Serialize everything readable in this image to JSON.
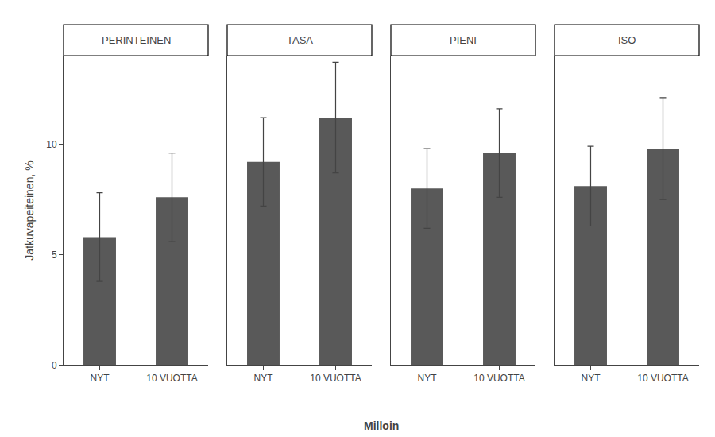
{
  "chart_data": [
    {
      "type": "bar",
      "title": "PERINTEINEN",
      "categories": [
        "NYT",
        "10 VUOTTA"
      ],
      "values": [
        5.8,
        7.6
      ],
      "errors": [
        2.0,
        2.0
      ],
      "color": "#595959",
      "ylabel": "Jatkuvapeiteinen, %",
      "xlabel": "Milloin",
      "ylim": [
        0,
        14
      ],
      "yticks": [
        0,
        5,
        10
      ],
      "grid": false
    },
    {
      "type": "bar",
      "title": "TASA",
      "categories": [
        "NYT",
        "10 VUOTTA"
      ],
      "values": [
        9.2,
        11.2
      ],
      "errors": [
        2.0,
        2.5
      ],
      "color": "#595959",
      "ylim": [
        0,
        14
      ],
      "yticks": [
        0,
        5,
        10
      ],
      "grid": false,
      "tick_labels": "x"
    },
    {
      "type": "bar",
      "title": "PIENI",
      "categories": [
        "NYT",
        "10 VUOTTA"
      ],
      "values": [
        8.0,
        9.6
      ],
      "errors": [
        1.8,
        2.0
      ],
      "color": "#595959",
      "ylim": [
        0,
        14
      ],
      "yticks": [
        0,
        5,
        10
      ],
      "grid": false,
      "tick_labels": "x"
    },
    {
      "type": "bar",
      "title": "ISO",
      "categories": [
        "NYT",
        "10 VUOTTA"
      ],
      "values": [
        8.1,
        9.8
      ],
      "errors": [
        1.8,
        2.3
      ],
      "color": "#595959",
      "ylim": [
        0,
        14
      ],
      "yticks": [
        0,
        5,
        10
      ],
      "grid": false,
      "tick_labels": "x"
    }
  ]
}
